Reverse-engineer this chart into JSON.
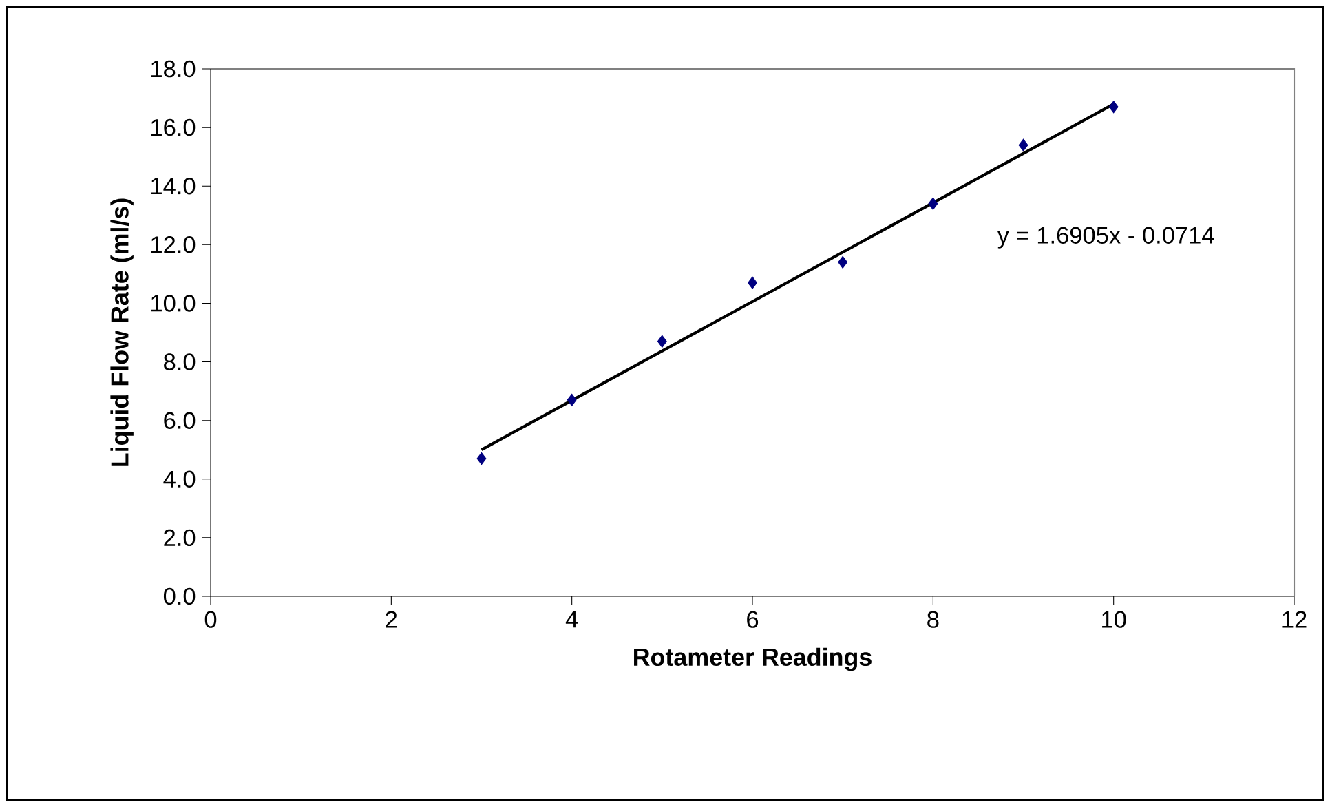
{
  "chart_data": {
    "type": "scatter",
    "xlabel": "Rotameter Readings",
    "ylabel": "Liquid Flow Rate (ml/s)",
    "marker": "diamond",
    "series": [
      {
        "color": "#000080",
        "x": [
          3,
          4,
          5,
          6,
          7,
          8,
          9,
          10
        ],
        "values": [
          4.7,
          6.7,
          8.7,
          10.7,
          11.4,
          13.4,
          15.4,
          16.7
        ]
      },
      {
        "type": "line",
        "color": "#000000",
        "marker": "none",
        "x": [
          3,
          10
        ],
        "values": [
          5.0,
          16.8
        ]
      }
    ],
    "annotations": [
      "y = 1.6905x - 0.0714"
    ],
    "xlim": [
      0,
      12
    ],
    "xticks": [
      0,
      2,
      4,
      6,
      8,
      10,
      12
    ],
    "ylim": [
      0,
      18
    ],
    "yticks": [
      {
        "value": 0,
        "label": "0.0"
      },
      {
        "value": 2,
        "label": "2.0"
      },
      {
        "value": 4,
        "label": "4.0"
      },
      {
        "value": 6,
        "label": "6.0"
      },
      {
        "value": 8,
        "label": "8.0"
      },
      {
        "value": 10,
        "label": "10.0"
      },
      {
        "value": 12,
        "label": "12.0"
      },
      {
        "value": 14,
        "label": "14.0"
      },
      {
        "value": 16,
        "label": "16.0"
      },
      {
        "value": 18,
        "label": "18.0"
      }
    ]
  }
}
